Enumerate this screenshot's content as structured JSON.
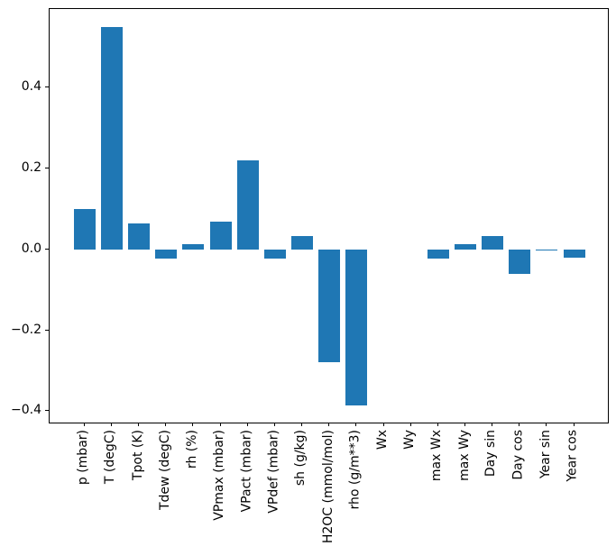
{
  "chart_data": {
    "type": "bar",
    "title": "",
    "xlabel": "",
    "ylabel": "",
    "categories": [
      "p (mbar)",
      "T (degC)",
      "Tpot (K)",
      "Tdew (degC)",
      "rh (%)",
      "VPmax (mbar)",
      "VPact (mbar)",
      "VPdef (mbar)",
      "sh (g/kg)",
      "H2OC (mmol/mol)",
      "rho (g/m**3)",
      "Wx",
      "Wy",
      "max Wx",
      "max Wy",
      "Day sin",
      "Day cos",
      "Year sin",
      "Year cos"
    ],
    "values": [
      0.099,
      0.548,
      0.064,
      -0.023,
      0.012,
      0.069,
      0.219,
      -0.023,
      0.032,
      -0.279,
      -0.385,
      0.0,
      0.0,
      -0.024,
      0.013,
      0.033,
      -0.06,
      -0.004,
      -0.022
    ],
    "ylim": [
      -0.428,
      0.593
    ],
    "yticks": [
      {
        "value": 0.4,
        "label": "0.4"
      },
      {
        "value": 0.2,
        "label": "0.2"
      },
      {
        "value": 0.0,
        "label": "0.0"
      },
      {
        "value": -0.2,
        "label": "−0.2"
      },
      {
        "value": -0.4,
        "label": "−0.4"
      }
    ],
    "grid": false,
    "legend": null,
    "bar_color": "#1f77b4",
    "spine_color": "#000000",
    "tick_label_color": "#000000",
    "background_color": "#ffffff"
  }
}
